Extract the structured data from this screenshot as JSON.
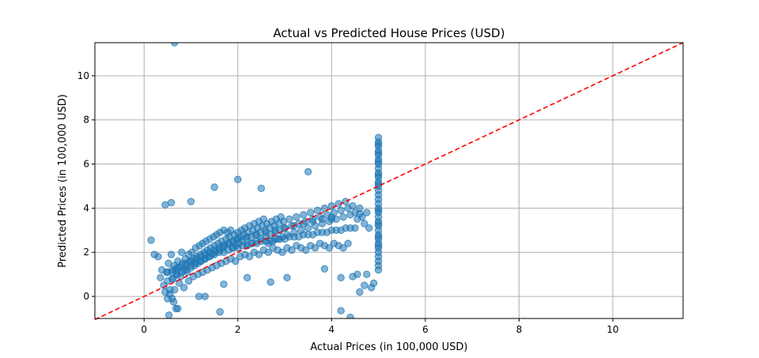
{
  "chart_data": {
    "type": "scatter",
    "title": "Actual vs Predicted House Prices (USD)",
    "xlabel": "Actual Prices (in 100,000 USD)",
    "ylabel": "Predicted Prices (in 100,000 USD)",
    "xlim": [
      -1.05,
      11.5
    ],
    "ylim": [
      -1.0,
      11.5
    ],
    "x_ticks": [
      0,
      2,
      4,
      6,
      8,
      10
    ],
    "y_ticks": [
      0,
      2,
      4,
      6,
      8,
      10
    ],
    "grid": true,
    "legend": "none",
    "colors": {
      "points": "#1f77b4",
      "reference_line": "#ff0000"
    },
    "reference_line": {
      "style": "dashed",
      "from": [
        -1.05,
        -1.05
      ],
      "to": [
        11.5,
        11.5
      ]
    },
    "points": {
      "x": [
        0.15,
        0.22,
        0.3,
        0.35,
        0.38,
        0.42,
        0.45,
        0.48,
        0.5,
        0.5,
        0.52,
        0.55,
        0.58,
        0.6,
        0.62,
        0.65,
        0.68,
        0.7,
        0.72,
        0.75,
        0.78,
        0.8,
        0.82,
        0.85,
        0.88,
        0.9,
        0.92,
        0.95,
        0.98,
        1.0,
        1.02,
        1.05,
        1.08,
        1.1,
        1.12,
        1.15,
        1.18,
        1.2,
        1.22,
        1.25,
        1.28,
        1.3,
        1.32,
        1.35,
        1.38,
        1.4,
        1.42,
        1.45,
        1.48,
        1.5,
        1.52,
        1.55,
        1.58,
        1.6,
        1.62,
        1.65,
        1.68,
        1.7,
        1.72,
        1.75,
        1.78,
        1.8,
        1.82,
        1.85,
        1.88,
        1.9,
        1.92,
        1.95,
        1.98,
        2.0,
        2.02,
        2.05,
        2.08,
        2.1,
        2.12,
        2.15,
        2.18,
        2.2,
        2.22,
        2.25,
        2.28,
        2.3,
        2.32,
        2.35,
        2.38,
        2.4,
        2.42,
        2.45,
        2.48,
        2.5,
        2.52,
        2.55,
        2.58,
        2.6,
        2.62,
        2.65,
        2.68,
        2.7,
        2.72,
        2.75,
        2.78,
        2.8,
        2.82,
        2.85,
        2.88,
        2.9,
        2.92,
        2.95,
        2.98,
        3.0,
        3.05,
        3.1,
        3.15,
        3.2,
        3.25,
        3.3,
        3.35,
        3.4,
        3.45,
        3.5,
        3.55,
        3.6,
        3.65,
        3.7,
        3.75,
        3.8,
        3.85,
        3.9,
        3.95,
        4.0,
        4.05,
        4.1,
        4.15,
        4.2,
        4.25,
        4.3,
        4.35,
        4.4,
        4.45,
        4.5,
        4.55,
        4.6,
        4.65,
        4.7,
        4.75,
        4.8,
        4.85,
        4.9,
        0.6,
        0.7,
        0.8,
        0.9,
        1.0,
        1.1,
        1.2,
        1.3,
        1.4,
        1.5,
        1.6,
        1.7,
        1.8,
        1.9,
        2.0,
        2.1,
        2.2,
        2.3,
        2.4,
        2.5,
        2.6,
        2.7,
        2.8,
        2.9,
        3.0,
        3.1,
        3.2,
        3.3,
        3.4,
        3.5,
        3.6,
        3.7,
        3.8,
        3.9,
        4.0,
        4.1,
        4.2,
        4.3,
        4.4,
        4.5,
        4.6,
        4.7,
        0.55,
        0.65,
        0.75,
        0.85,
        0.95,
        1.05,
        1.15,
        1.25,
        1.35,
        1.45,
        1.55,
        1.65,
        1.75,
        1.85,
        1.95,
        2.05,
        2.15,
        2.25,
        2.35,
        2.45,
        2.55,
        2.65,
        2.75,
        2.85,
        2.95,
        3.05,
        3.15,
        3.25,
        3.35,
        3.45,
        3.55,
        3.65,
        3.75,
        3.85,
        3.95,
        4.05,
        4.15,
        4.25,
        4.35,
        4.45,
        4.55,
        0.5,
        0.6,
        0.7,
        0.8,
        0.9,
        1.0,
        1.1,
        1.2,
        1.3,
        1.4,
        1.5,
        1.6,
        1.7,
        1.8,
        1.9,
        2.0,
        2.2,
        2.4,
        2.6,
        2.8,
        3.0,
        3.2,
        3.4,
        3.6,
        3.8,
        4.0,
        4.2,
        4.4,
        0.65,
        0.72,
        1.62,
        0.53,
        0.58,
        0.63,
        0.68,
        0.6,
        1.17,
        1.5,
        0.45,
        2.0,
        2.5,
        3.5,
        4.0,
        4.6,
        1.0,
        1.3,
        1.7,
        2.7,
        2.2,
        3.05,
        3.85,
        4.2,
        4.75,
        5.0,
        5.0,
        5.0,
        5.0,
        5.0,
        5.0,
        5.0,
        5.0,
        5.0,
        5.0,
        5.0,
        5.0,
        5.0,
        5.0,
        5.0,
        5.0,
        5.0,
        5.0,
        5.0,
        5.0,
        5.0,
        5.0,
        5.0,
        5.0,
        5.0,
        5.0,
        5.0,
        5.0,
        5.0,
        5.0,
        5.0,
        5.0,
        5.0,
        5.0,
        5.0,
        5.0,
        5.0,
        5.0,
        5.0,
        5.0
      ],
      "y": [
        2.55,
        1.9,
        1.8,
        0.85,
        1.2,
        0.5,
        0.2,
        1.1,
        0.7,
        -0.1,
        1.5,
        0.3,
        1.9,
        1.1,
        0.8,
        1.4,
        1.2,
        1.0,
        1.6,
        1.3,
        0.9,
        2.0,
        1.5,
        1.2,
        1.7,
        1.4,
        1.1,
        1.9,
        1.6,
        1.3,
        2.0,
        1.7,
        1.4,
        2.2,
        1.8,
        1.5,
        2.3,
        1.9,
        1.6,
        2.4,
        2.0,
        1.7,
        2.5,
        2.1,
        1.8,
        2.6,
        2.2,
        1.9,
        2.7,
        2.3,
        2.0,
        2.8,
        2.4,
        2.1,
        2.9,
        2.5,
        2.2,
        3.0,
        2.3,
        2.6,
        2.9,
        2.4,
        2.7,
        3.0,
        2.2,
        2.5,
        2.8,
        2.3,
        2.6,
        2.9,
        2.4,
        2.7,
        3.0,
        2.5,
        2.8,
        3.1,
        2.6,
        2.3,
        2.9,
        3.2,
        2.7,
        2.4,
        3.0,
        3.3,
        2.8,
        2.5,
        3.1,
        3.4,
        2.9,
        2.6,
        3.2,
        3.5,
        3.0,
        2.7,
        3.3,
        2.4,
        3.1,
        2.8,
        3.4,
        2.5,
        3.2,
        2.9,
        3.5,
        2.6,
        3.3,
        3.0,
        3.6,
        2.7,
        3.4,
        3.1,
        2.8,
        3.5,
        3.2,
        2.9,
        3.6,
        3.3,
        3.0,
        3.7,
        3.4,
        3.1,
        3.8,
        3.5,
        3.2,
        3.9,
        3.6,
        3.3,
        4.0,
        3.7,
        3.4,
        4.1,
        3.8,
        3.5,
        4.2,
        3.9,
        3.6,
        4.3,
        4.0,
        3.7,
        4.1,
        3.8,
        3.5,
        4.0,
        3.6,
        3.3,
        3.8,
        3.1,
        0.4,
        0.6,
        0.8,
        1.0,
        1.1,
        1.2,
        1.4,
        1.5,
        1.6,
        1.7,
        1.8,
        1.9,
        2.0,
        2.0,
        2.1,
        2.2,
        2.2,
        2.3,
        2.3,
        2.4,
        2.4,
        2.5,
        2.5,
        2.5,
        2.6,
        2.6,
        2.6,
        2.7,
        2.7,
        2.7,
        2.8,
        2.8,
        2.8,
        2.9,
        2.9,
        2.9,
        3.0,
        3.0,
        3.0,
        3.1,
        3.1,
        3.1,
        0.2,
        0.5,
        0.1,
        0.3,
        0.6,
        0.4,
        0.7,
        0.9,
        1.0,
        1.1,
        1.2,
        1.3,
        1.4,
        1.5,
        1.6,
        1.7,
        1.6,
        1.8,
        1.9,
        1.8,
        2.0,
        1.9,
        2.1,
        2.0,
        2.2,
        2.1,
        2.0,
        2.2,
        2.1,
        2.3,
        2.2,
        2.1,
        2.3,
        2.2,
        2.4,
        2.3,
        2.2,
        2.4,
        2.3,
        2.2,
        2.4,
        0.9,
        1.0,
        1.1,
        1.2,
        1.3,
        1.4,
        1.5,
        1.6,
        1.7,
        1.8,
        1.9,
        2.0,
        2.1,
        2.2,
        2.3,
        2.4,
        2.5,
        2.6,
        2.7,
        2.8,
        2.9,
        3.0,
        3.1,
        3.2,
        3.3,
        3.4,
        3.5,
        3.6,
        -0.65,
        -0.95,
        11.5,
        -0.55,
        -0.7,
        -0.85,
        4.25,
        -0.25,
        -0.55,
        -0.1,
        0.0,
        4.95,
        4.15,
        5.3,
        4.9,
        5.65,
        3.5,
        3.75,
        4.3,
        0.0,
        0.55,
        0.65,
        0.85,
        0.85,
        1.25,
        0.85,
        1.0,
        1.2,
        1.4,
        1.6,
        1.8,
        2.0,
        2.2,
        2.4,
        2.6,
        2.8,
        3.0,
        3.2,
        3.4,
        3.6,
        3.8,
        4.0,
        4.2,
        4.4,
        4.6,
        4.8,
        5.0,
        5.2,
        5.4,
        5.6,
        5.8,
        6.0,
        6.2,
        6.4,
        6.6,
        6.8,
        7.0,
        7.2,
        2.3,
        2.7,
        3.3,
        3.9,
        5.1,
        5.5,
        6.1,
        6.5,
        6.9
      ]
    }
  }
}
